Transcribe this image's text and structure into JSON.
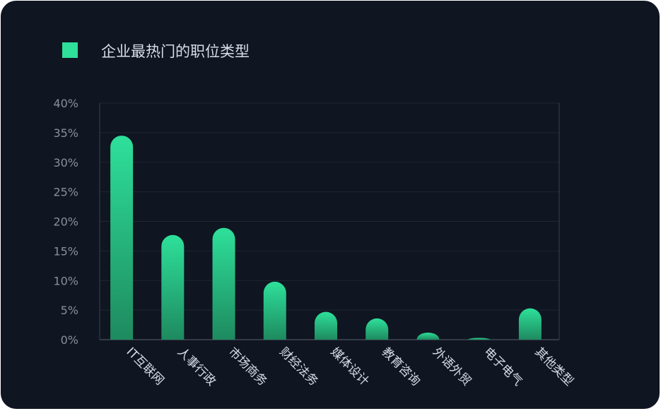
{
  "chart_data": {
    "type": "bar",
    "legend": {
      "label": "企业最热门的职位类型",
      "placement": "top-left"
    },
    "categories": [
      "IT互联网",
      "人事行政",
      "市场商务",
      "财经法务",
      "媒体设计",
      "教育咨询",
      "外语外贸",
      "电子电气",
      "其他类型"
    ],
    "series": [
      {
        "name": "企业最热门的职位类型",
        "values": [
          34.5,
          17.7,
          18.9,
          9.8,
          4.7,
          3.6,
          1.2,
          0.3,
          5.3
        ]
      }
    ],
    "y_ticks": [
      "0%",
      "5%",
      "10%",
      "15%",
      "20%",
      "25%",
      "30%",
      "35%",
      "40%"
    ],
    "ylim": [
      0,
      40
    ],
    "grid": true,
    "colors": {
      "background": "#0f1521",
      "bar_top": "#2ee09a",
      "bar_bottom": "#1e8a5f",
      "text": "#d8dde6",
      "axis_text": "#8a8f99",
      "grid": "#1f2733"
    }
  }
}
